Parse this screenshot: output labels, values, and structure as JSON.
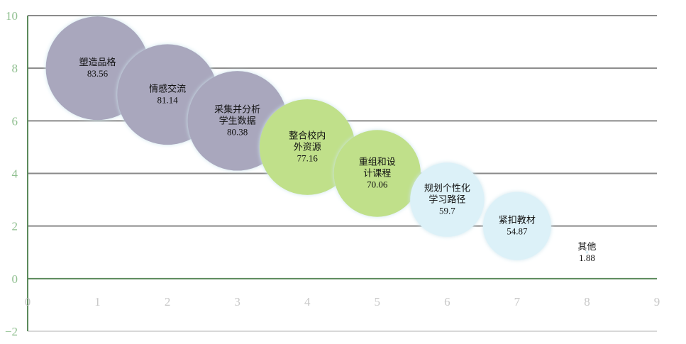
{
  "chart_data": {
    "type": "bubble",
    "title": "",
    "xlabel": "",
    "ylabel": "",
    "xlim": [
      0,
      9
    ],
    "ylim": [
      -2,
      10
    ],
    "xticks": [
      0,
      1,
      2,
      3,
      4,
      5,
      6,
      7,
      8,
      9
    ],
    "yticks": [
      -2,
      0,
      2,
      4,
      6,
      8,
      10
    ],
    "grid": true,
    "points": [
      {
        "x": 1,
        "y": 8,
        "size": 83.56,
        "label_lines": [
          "塑造品格"
        ],
        "value_label": "83.56",
        "color": "#a9a7bd"
      },
      {
        "x": 2,
        "y": 7,
        "size": 81.14,
        "label_lines": [
          "情感交流"
        ],
        "value_label": "81.14",
        "color": "#a9a7bd"
      },
      {
        "x": 3,
        "y": 6,
        "size": 80.38,
        "label_lines": [
          "采集并分析",
          "学生数据"
        ],
        "value_label": "80.38",
        "color": "#a9a7bd"
      },
      {
        "x": 4,
        "y": 5,
        "size": 77.16,
        "label_lines": [
          "整合校内",
          "外资源"
        ],
        "value_label": "77.16",
        "color": "#c0e08a"
      },
      {
        "x": 5,
        "y": 4,
        "size": 70.06,
        "label_lines": [
          "重组和设",
          "计课程"
        ],
        "value_label": "70.06",
        "color": "#c0e08a"
      },
      {
        "x": 6,
        "y": 3,
        "size": 59.7,
        "label_lines": [
          "规划个性化",
          "学习路径"
        ],
        "value_label": "59.7",
        "color": "#dcf1f8"
      },
      {
        "x": 7,
        "y": 2,
        "size": 54.87,
        "label_lines": [
          "紧扣教材"
        ],
        "value_label": "54.87",
        "color": "#dcf1f8"
      },
      {
        "x": 8,
        "y": 1,
        "size": 1.88,
        "label_lines": [
          "其他"
        ],
        "value_label": "1.88",
        "color": "#dcf1f8"
      }
    ]
  }
}
